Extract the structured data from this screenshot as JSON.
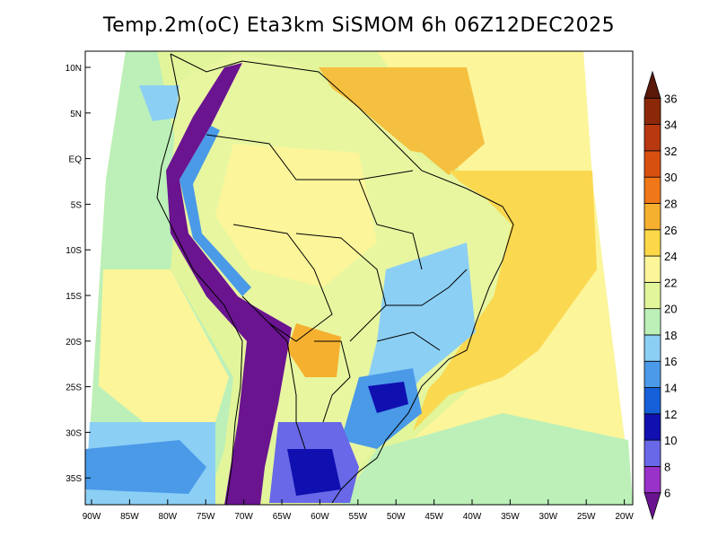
{
  "title": "Temp.2m(oC) Eta3km SiSMOM 6h 06Z12DEC2025",
  "lat_labels": [
    "10N",
    "5N",
    "EQ",
    "5S",
    "10S",
    "15S",
    "20S",
    "25S",
    "30S",
    "35S"
  ],
  "lon_labels": [
    "90W",
    "85W",
    "80W",
    "75W",
    "70W",
    "65W",
    "60W",
    "55W",
    "50W",
    "45W",
    "40W",
    "35W",
    "30W",
    "25W",
    "20W"
  ],
  "colorbar": {
    "labels": [
      "6",
      "8",
      "10",
      "12",
      "14",
      "16",
      "18",
      "20",
      "22",
      "24",
      "26",
      "28",
      "30",
      "32",
      "34",
      "36"
    ],
    "colors": [
      "#6a1490",
      "#9932c8",
      "#6868e8",
      "#1010b0",
      "#1560d8",
      "#4a9ae8",
      "#8ccff5",
      "#bcf0b8",
      "#e2f59a",
      "#fcf59a",
      "#fcd848",
      "#f5b030",
      "#f07818",
      "#d85010",
      "#b83810",
      "#8a2808",
      "#5a1808"
    ]
  },
  "map_colors": {
    "ocean_pacific": "#d0f2a8",
    "ocean_atlantic": "#fad850",
    "land_base": "#eef79a",
    "andes": "#6a1490"
  }
}
